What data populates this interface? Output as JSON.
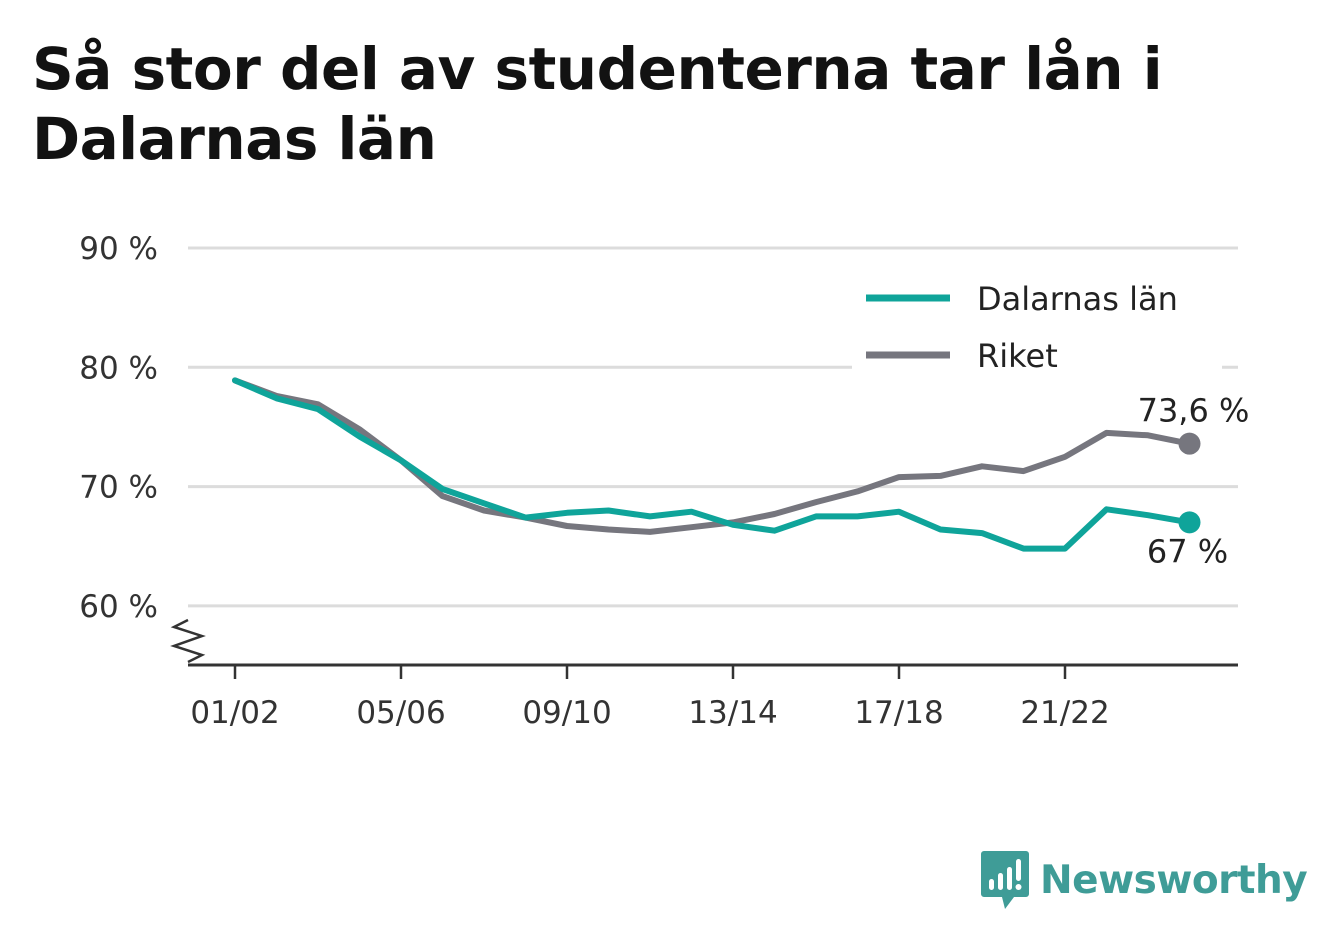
{
  "title": "Så stor del av studenterna tar lån i Dalarnas län",
  "brand": {
    "name": "Newsworthy",
    "icon": "newsworthy-logo-icon",
    "color": "#3f9c97"
  },
  "chart_data": {
    "type": "line",
    "title": "Så stor del av studenterna tar lån i Dalarnas län",
    "xlabel": "",
    "ylabel": "",
    "x": [
      "01/02",
      "02/03",
      "03/04",
      "04/05",
      "05/06",
      "06/07",
      "07/08",
      "08/09",
      "09/10",
      "10/11",
      "11/12",
      "12/13",
      "13/14",
      "14/15",
      "15/16",
      "16/17",
      "17/18",
      "18/19",
      "19/20",
      "20/21",
      "21/22",
      "22/23",
      "23/24",
      "24/25"
    ],
    "x_ticks": [
      "01/02",
      "05/06",
      "09/10",
      "13/14",
      "17/18",
      "21/22"
    ],
    "y_ticks": [
      60,
      70,
      80,
      90
    ],
    "y_tick_labels": [
      "60 %",
      "70 %",
      "80 %",
      "90 %"
    ],
    "ylim": [
      55,
      90
    ],
    "y_axis_break": true,
    "grid": true,
    "legend_position": "top-right",
    "series": [
      {
        "name": "Dalarnas län",
        "color": "#0fa49a",
        "values": [
          78.9,
          77.4,
          76.5,
          74.2,
          72.2,
          69.8,
          68.6,
          67.4,
          67.8,
          68.0,
          67.5,
          67.9,
          66.8,
          66.3,
          67.5,
          67.5,
          67.9,
          66.4,
          66.1,
          64.8,
          64.8,
          68.1,
          67.6,
          67.0
        ],
        "end_label": "67 %"
      },
      {
        "name": "Riket",
        "color": "#76767e",
        "values": [
          78.9,
          77.6,
          76.9,
          74.8,
          72.2,
          69.2,
          68.0,
          67.4,
          66.7,
          66.4,
          66.2,
          66.6,
          67.0,
          67.7,
          68.7,
          69.6,
          70.8,
          70.9,
          71.7,
          71.3,
          72.5,
          74.5,
          74.3,
          73.6
        ],
        "end_label": "73,6 %"
      }
    ]
  }
}
